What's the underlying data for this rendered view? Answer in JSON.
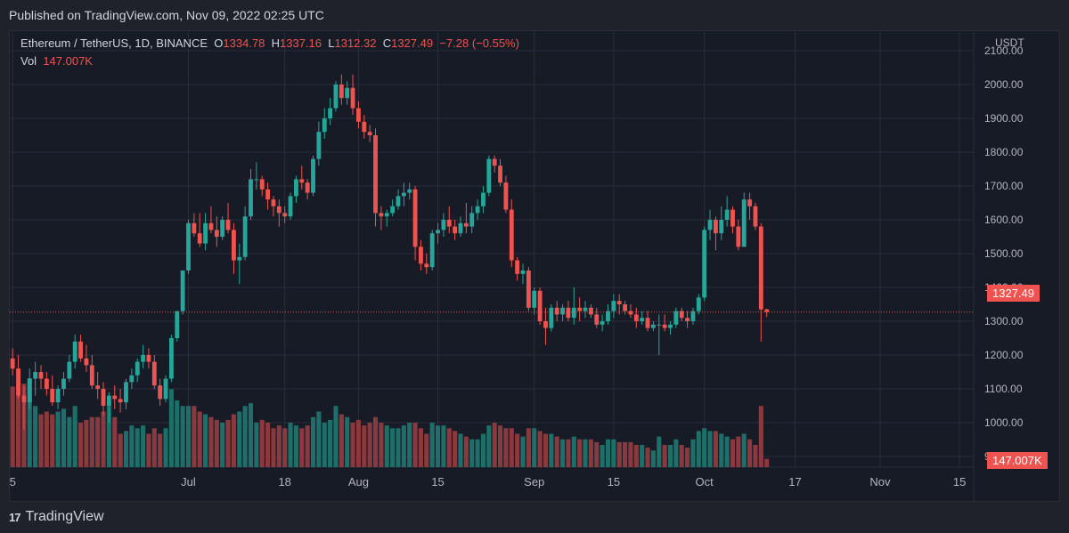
{
  "published_text": "Published on TradingView.com, Nov 09, 2022 02:25 UTC",
  "brand": {
    "logo": "17",
    "name": "TradingView"
  },
  "legend": {
    "symbol": "Ethereum / TetherUS, 1D, BINANCE",
    "open_label": "O",
    "open": "1334.78",
    "high_label": "H",
    "high": "1337.16",
    "low_label": "L",
    "low": "1312.32",
    "close_label": "C",
    "close": "1327.49",
    "change": "−7.28 (−0.55%)",
    "vol_label": "Vol",
    "vol": "147.007K"
  },
  "unit": "USDT",
  "last_price_label": "1327.49",
  "last_volume_label": "147.007K",
  "colors": {
    "up": "#26a69a",
    "down": "#ef5350",
    "up_vol": "#1e6e6a",
    "down_vol": "#8a3a3f",
    "grid": "#2a2e39",
    "text": "#b2b5be",
    "bg": "#171b26"
  },
  "chart_data": {
    "type": "candlestick",
    "title": "Ethereum / TetherUS, 1D, BINANCE",
    "ylabel": "USDT",
    "ylim": [
      900,
      2100
    ],
    "y_ticks": [
      "2100.00",
      "2000.00",
      "1900.00",
      "1800.00",
      "1700.00",
      "1600.00",
      "1500.00",
      "1400.00",
      "1300.00",
      "1200.00",
      "1100.00",
      "1000.00",
      "900.00"
    ],
    "x_ticks": [
      {
        "label": "5",
        "index": 0
      },
      {
        "label": "Jul",
        "index": 31
      },
      {
        "label": "18",
        "index": 48
      },
      {
        "label": "Aug",
        "index": 61
      },
      {
        "label": "15",
        "index": 75
      },
      {
        "label": "Sep",
        "index": 92
      },
      {
        "label": "15",
        "index": 106
      },
      {
        "label": "Oct",
        "index": 122
      },
      {
        "label": "17",
        "index": 138
      },
      {
        "label": "Nov",
        "index": 153
      },
      {
        "label": "15",
        "index": 167
      }
    ],
    "candles": [
      [
        1190,
        1220,
        1140,
        1160,
        145
      ],
      [
        1160,
        1200,
        1070,
        1080,
        130
      ],
      [
        1080,
        1110,
        980,
        1060,
        150
      ],
      [
        1060,
        1160,
        1040,
        1130,
        160
      ],
      [
        1130,
        1180,
        1080,
        1150,
        110
      ],
      [
        1150,
        1170,
        1100,
        1130,
        95
      ],
      [
        1130,
        1150,
        1080,
        1100,
        100
      ],
      [
        1100,
        1140,
        1050,
        1060,
        95
      ],
      [
        1060,
        1110,
        1040,
        1100,
        100
      ],
      [
        1100,
        1150,
        1080,
        1130,
        105
      ],
      [
        1130,
        1200,
        1120,
        1180,
        90
      ],
      [
        1180,
        1260,
        1160,
        1240,
        110
      ],
      [
        1240,
        1260,
        1180,
        1190,
        80
      ],
      [
        1190,
        1230,
        1150,
        1170,
        85
      ],
      [
        1170,
        1200,
        1100,
        1110,
        90
      ],
      [
        1110,
        1150,
        1070,
        1100,
        90
      ],
      [
        1100,
        1120,
        1020,
        1050,
        100
      ],
      [
        1050,
        1090,
        1000,
        1080,
        110
      ],
      [
        1080,
        1110,
        1040,
        1070,
        90
      ],
      [
        1070,
        1100,
        1030,
        1060,
        60
      ],
      [
        1060,
        1130,
        1040,
        1120,
        65
      ],
      [
        1120,
        1160,
        1100,
        1140,
        75
      ],
      [
        1140,
        1190,
        1120,
        1180,
        70
      ],
      [
        1180,
        1230,
        1160,
        1200,
        75
      ],
      [
        1200,
        1220,
        1160,
        1180,
        60
      ],
      [
        1180,
        1200,
        1100,
        1110,
        70
      ],
      [
        1110,
        1130,
        1050,
        1070,
        60
      ],
      [
        1070,
        1140,
        1060,
        1130,
        70
      ],
      [
        1130,
        1260,
        1120,
        1250,
        140
      ],
      [
        1250,
        1330,
        1240,
        1330,
        120
      ],
      [
        1330,
        1450,
        1320,
        1450,
        110
      ],
      [
        1450,
        1600,
        1440,
        1590,
        110
      ],
      [
        1590,
        1620,
        1550,
        1560,
        110
      ],
      [
        1560,
        1620,
        1520,
        1530,
        100
      ],
      [
        1530,
        1620,
        1510,
        1590,
        95
      ],
      [
        1590,
        1640,
        1560,
        1570,
        90
      ],
      [
        1570,
        1610,
        1520,
        1550,
        85
      ],
      [
        1550,
        1610,
        1540,
        1600,
        80
      ],
      [
        1600,
        1650,
        1560,
        1570,
        85
      ],
      [
        1570,
        1590,
        1440,
        1480,
        95
      ],
      [
        1480,
        1530,
        1410,
        1490,
        100
      ],
      [
        1490,
        1640,
        1480,
        1610,
        110
      ],
      [
        1610,
        1750,
        1600,
        1720,
        115
      ],
      [
        1720,
        1770,
        1690,
        1720,
        80
      ],
      [
        1720,
        1730,
        1670,
        1690,
        85
      ],
      [
        1690,
        1710,
        1630,
        1660,
        80
      ],
      [
        1660,
        1670,
        1610,
        1640,
        70
      ],
      [
        1640,
        1660,
        1580,
        1620,
        75
      ],
      [
        1620,
        1640,
        1590,
        1610,
        70
      ],
      [
        1610,
        1680,
        1600,
        1670,
        80
      ],
      [
        1670,
        1730,
        1650,
        1720,
        75
      ],
      [
        1720,
        1760,
        1690,
        1710,
        70
      ],
      [
        1710,
        1720,
        1660,
        1680,
        75
      ],
      [
        1680,
        1790,
        1670,
        1780,
        90
      ],
      [
        1780,
        1890,
        1760,
        1860,
        100
      ],
      [
        1860,
        1930,
        1840,
        1900,
        80
      ],
      [
        1900,
        1960,
        1880,
        1930,
        85
      ],
      [
        1930,
        2010,
        1920,
        2000,
        110
      ],
      [
        2000,
        2030,
        1940,
        1960,
        95
      ],
      [
        1960,
        2010,
        1940,
        1990,
        90
      ],
      [
        1990,
        2030,
        1910,
        1930,
        80
      ],
      [
        1930,
        1950,
        1870,
        1890,
        85
      ],
      [
        1890,
        1910,
        1840,
        1860,
        75
      ],
      [
        1860,
        1880,
        1830,
        1850,
        80
      ],
      [
        1850,
        1870,
        1580,
        1620,
        90
      ],
      [
        1620,
        1640,
        1570,
        1610,
        80
      ],
      [
        1610,
        1630,
        1580,
        1620,
        75
      ],
      [
        1620,
        1660,
        1610,
        1640,
        70
      ],
      [
        1640,
        1690,
        1630,
        1670,
        70
      ],
      [
        1670,
        1710,
        1640,
        1680,
        75
      ],
      [
        1680,
        1710,
        1660,
        1690,
        80
      ],
      [
        1690,
        1700,
        1480,
        1520,
        80
      ],
      [
        1520,
        1540,
        1450,
        1470,
        70
      ],
      [
        1470,
        1500,
        1440,
        1460,
        60
      ],
      [
        1460,
        1570,
        1450,
        1560,
        80
      ],
      [
        1560,
        1590,
        1530,
        1570,
        75
      ],
      [
        1570,
        1620,
        1550,
        1600,
        75
      ],
      [
        1600,
        1640,
        1560,
        1580,
        70
      ],
      [
        1580,
        1600,
        1540,
        1560,
        65
      ],
      [
        1560,
        1610,
        1550,
        1590,
        60
      ],
      [
        1590,
        1650,
        1560,
        1580,
        55
      ],
      [
        1580,
        1640,
        1560,
        1620,
        50
      ],
      [
        1620,
        1660,
        1600,
        1640,
        50
      ],
      [
        1640,
        1700,
        1620,
        1680,
        60
      ],
      [
        1680,
        1790,
        1670,
        1780,
        75
      ],
      [
        1780,
        1790,
        1740,
        1760,
        80
      ],
      [
        1760,
        1780,
        1700,
        1710,
        75
      ],
      [
        1710,
        1730,
        1620,
        1630,
        70
      ],
      [
        1630,
        1660,
        1460,
        1480,
        70
      ],
      [
        1480,
        1490,
        1420,
        1440,
        60
      ],
      [
        1440,
        1470,
        1410,
        1450,
        55
      ],
      [
        1450,
        1460,
        1330,
        1340,
        70
      ],
      [
        1340,
        1400,
        1320,
        1390,
        70
      ],
      [
        1390,
        1400,
        1290,
        1300,
        65
      ],
      [
        1300,
        1340,
        1230,
        1280,
        60
      ],
      [
        1280,
        1350,
        1270,
        1340,
        60
      ],
      [
        1340,
        1360,
        1300,
        1320,
        55
      ],
      [
        1320,
        1350,
        1300,
        1340,
        50
      ],
      [
        1340,
        1360,
        1300,
        1310,
        50
      ],
      [
        1310,
        1400,
        1290,
        1340,
        55
      ],
      [
        1340,
        1370,
        1300,
        1330,
        50
      ],
      [
        1330,
        1360,
        1310,
        1340,
        50
      ],
      [
        1340,
        1350,
        1310,
        1320,
        50
      ],
      [
        1320,
        1340,
        1280,
        1290,
        45
      ],
      [
        1290,
        1320,
        1270,
        1300,
        40
      ],
      [
        1300,
        1350,
        1290,
        1330,
        50
      ],
      [
        1330,
        1380,
        1310,
        1360,
        50
      ],
      [
        1360,
        1380,
        1320,
        1350,
        45
      ],
      [
        1350,
        1360,
        1320,
        1330,
        45
      ],
      [
        1330,
        1350,
        1310,
        1320,
        45
      ],
      [
        1320,
        1340,
        1280,
        1300,
        40
      ],
      [
        1300,
        1330,
        1290,
        1310,
        40
      ],
      [
        1310,
        1330,
        1270,
        1280,
        35
      ],
      [
        1280,
        1300,
        1270,
        1290,
        30
      ],
      [
        1290,
        1320,
        1200,
        1290,
        55
      ],
      [
        1290,
        1320,
        1270,
        1280,
        40
      ],
      [
        1280,
        1300,
        1260,
        1290,
        40
      ],
      [
        1290,
        1340,
        1280,
        1330,
        50
      ],
      [
        1330,
        1340,
        1300,
        1310,
        40
      ],
      [
        1310,
        1330,
        1280,
        1300,
        35
      ],
      [
        1300,
        1340,
        1290,
        1330,
        50
      ],
      [
        1330,
        1380,
        1320,
        1370,
        65
      ],
      [
        1370,
        1580,
        1360,
        1570,
        70
      ],
      [
        1570,
        1630,
        1540,
        1600,
        65
      ],
      [
        1600,
        1610,
        1510,
        1560,
        65
      ],
      [
        1560,
        1640,
        1540,
        1600,
        60
      ],
      [
        1600,
        1670,
        1580,
        1630,
        55
      ],
      [
        1630,
        1640,
        1560,
        1580,
        50
      ],
      [
        1580,
        1600,
        1510,
        1520,
        55
      ],
      [
        1520,
        1680,
        1520,
        1660,
        60
      ],
      [
        1660,
        1680,
        1600,
        1640,
        50
      ],
      [
        1640,
        1650,
        1570,
        1580,
        40
      ],
      [
        1580,
        1590,
        1240,
        1335,
        110
      ],
      [
        1335,
        1337,
        1312,
        1327,
        15
      ]
    ]
  }
}
